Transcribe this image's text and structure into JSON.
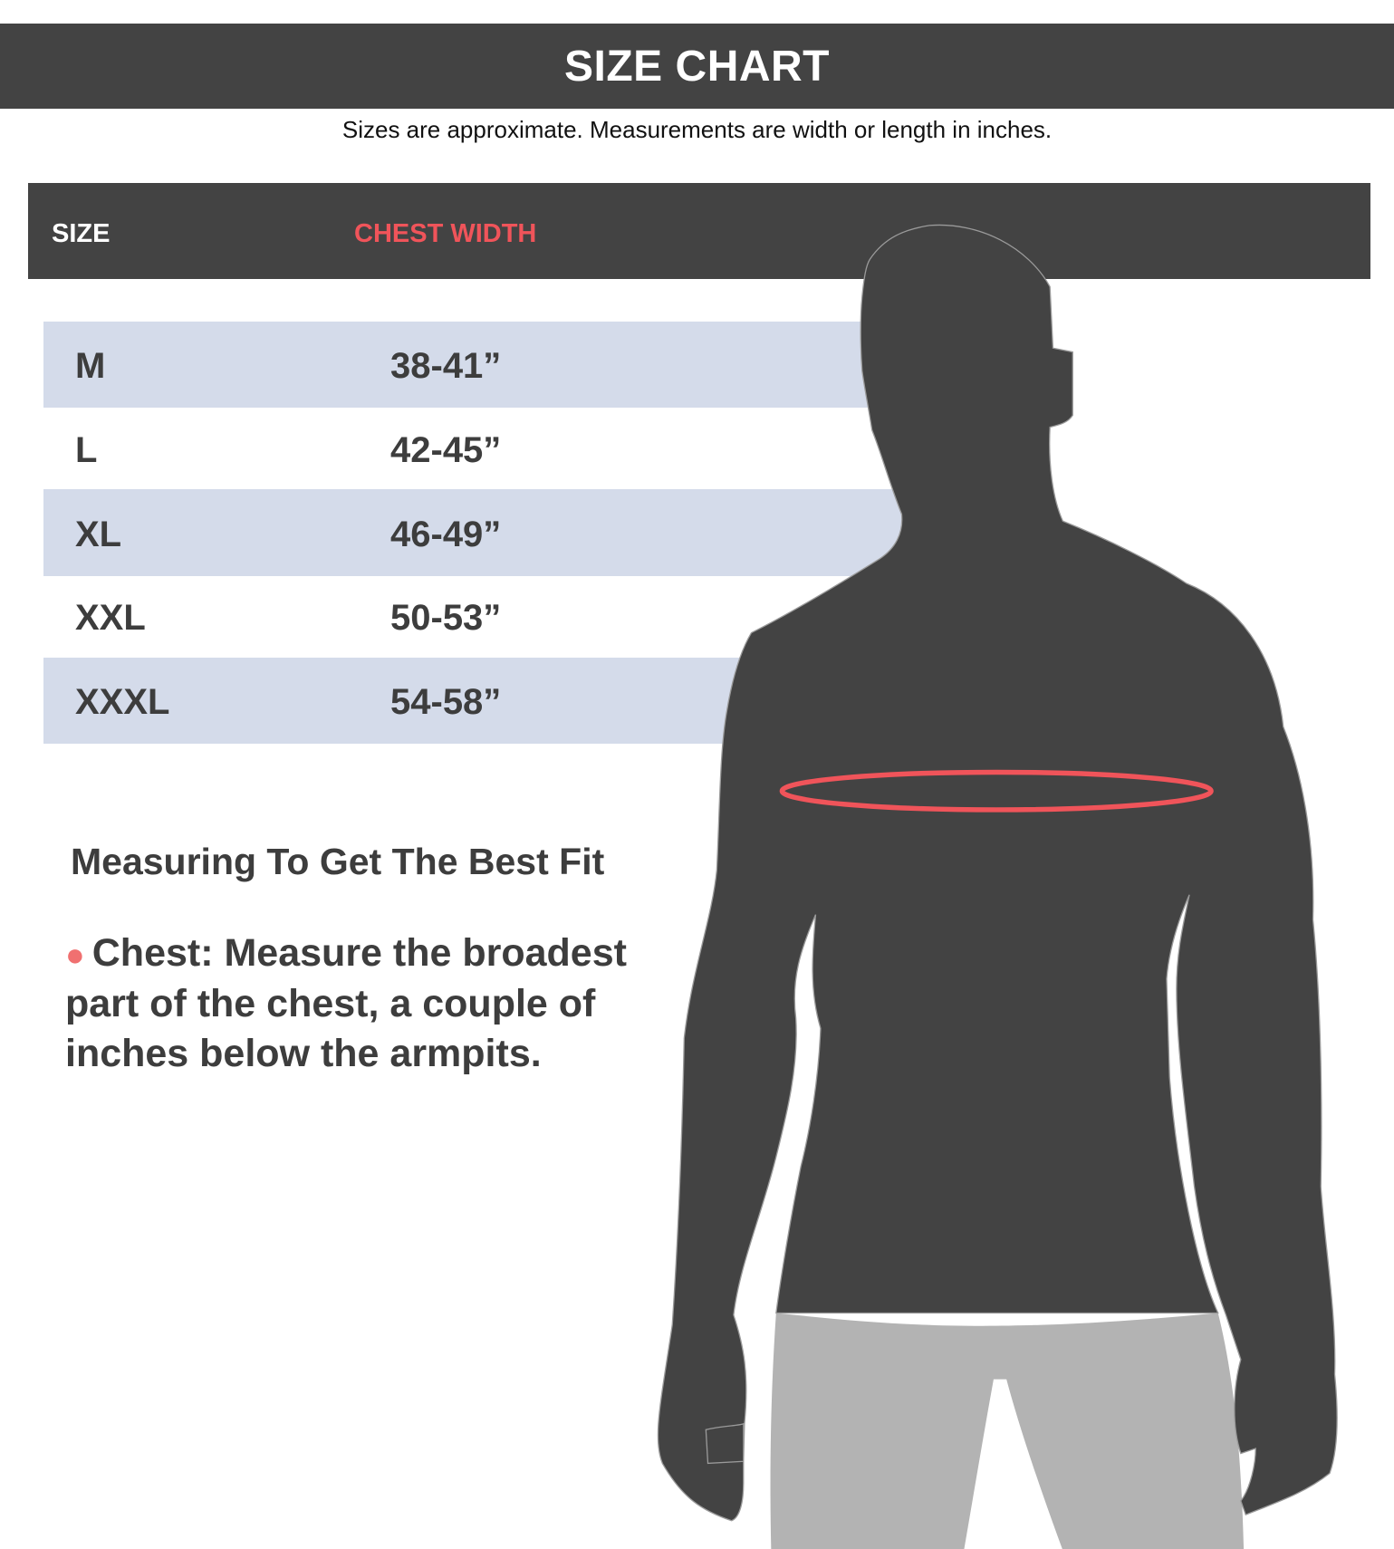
{
  "header": {
    "title": "SIZE CHART"
  },
  "subtitle": "Sizes are approximate. Measurements are width or length in inches.",
  "table": {
    "columns": [
      "SIZE",
      "CHEST WIDTH"
    ],
    "rows": [
      {
        "size": "M",
        "chest": "38-41”"
      },
      {
        "size": "L",
        "chest": "42-45”"
      },
      {
        "size": "XL",
        "chest": "46-49”"
      },
      {
        "size": "XXL",
        "chest": "50-53”"
      },
      {
        "size": "XXXL",
        "chest": "54-58”"
      }
    ]
  },
  "tips": {
    "title": "Measuring To Get The Best Fit",
    "bullet": "Chest: Measure the broadest part of the chest, a couple of inches below the armpits."
  },
  "colors": {
    "dark": "#434343",
    "accent": "#f0545a",
    "band": "#d4dbea",
    "pants": "#b3b3b3"
  }
}
